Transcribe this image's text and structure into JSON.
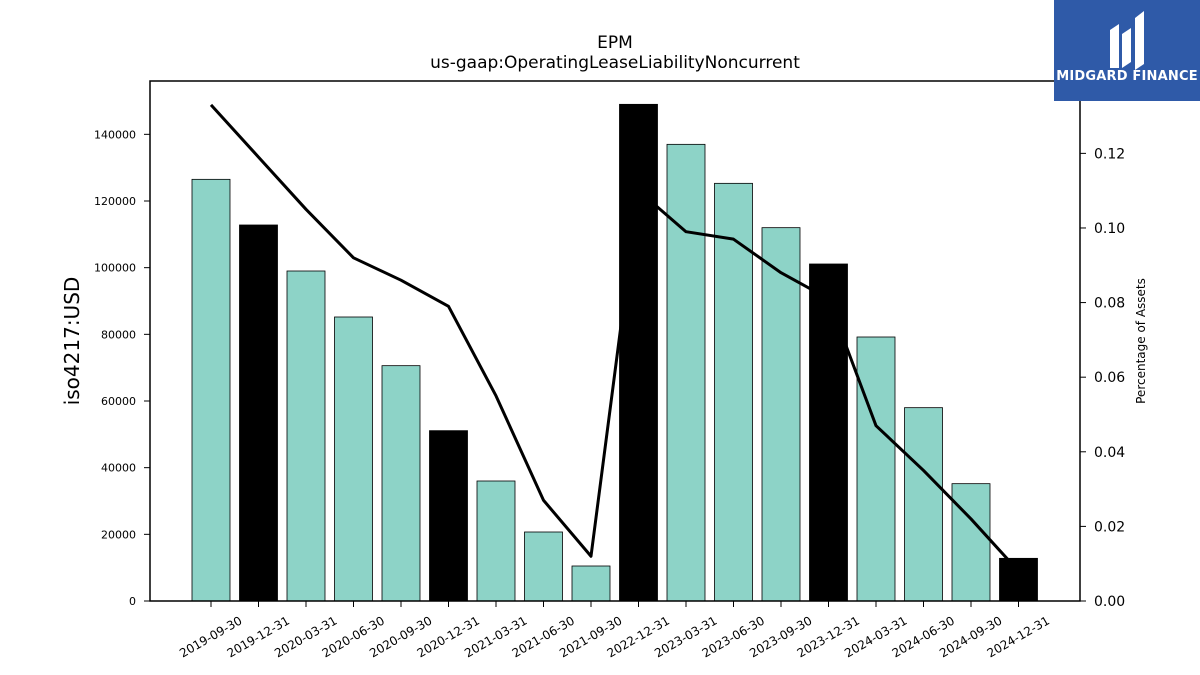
{
  "chart_data": {
    "type": "bar",
    "title": "EPM",
    "subtitle": "us-gaap:OperatingLeaseLiabilityNoncurrent",
    "ylabel": "iso4217:USD",
    "y2label": "Percentage of Assets",
    "xlabel": "",
    "categories": [
      "2019-09-30",
      "2019-12-31",
      "2020-03-31",
      "2020-06-30",
      "2020-09-30",
      "2020-12-31",
      "2021-03-31",
      "2021-06-30",
      "2021-09-30",
      "2022-12-31",
      "2023-03-31",
      "2023-06-30",
      "2023-09-30",
      "2023-12-31",
      "2024-03-31",
      "2024-06-30",
      "2024-09-30",
      "2024-12-31"
    ],
    "series": [
      {
        "kind": "bar",
        "values": [
          126500,
          112800,
          99000,
          85200,
          70600,
          51100,
          36000,
          20700,
          10500,
          149000,
          137000,
          125300,
          112000,
          101100,
          79200,
          58000,
          35200,
          12800
        ],
        "colors": [
          "#8dd3c7",
          "#000000",
          "#8dd3c7",
          "#8dd3c7",
          "#8dd3c7",
          "#000000",
          "#8dd3c7",
          "#8dd3c7",
          "#8dd3c7",
          "#000000",
          "#8dd3c7",
          "#8dd3c7",
          "#8dd3c7",
          "#000000",
          "#8dd3c7",
          "#8dd3c7",
          "#8dd3c7",
          "#000000"
        ]
      },
      {
        "kind": "line",
        "axis": "right",
        "values": [
          0.133,
          0.119,
          0.105,
          0.092,
          0.086,
          0.079,
          0.055,
          0.027,
          0.012,
          0.11,
          0.099,
          0.097,
          0.088,
          0.081,
          0.047,
          0.035,
          0.022,
          0.008
        ]
      }
    ],
    "ylim": [
      0,
      156000
    ],
    "y2lim": [
      0,
      0.1394
    ],
    "yticks": [
      0,
      20000,
      40000,
      60000,
      80000,
      100000,
      120000,
      140000
    ],
    "y2ticks": [
      "0.00",
      "0.02",
      "0.04",
      "0.06",
      "0.08",
      "0.10",
      "0.12"
    ],
    "grid": false,
    "colors": {
      "bar": "#8dd3c7",
      "highlight": "#000000",
      "line": "#000000"
    }
  },
  "logo": {
    "text": "MIDGARD FINANCE",
    "background": "#2f5aa8"
  }
}
